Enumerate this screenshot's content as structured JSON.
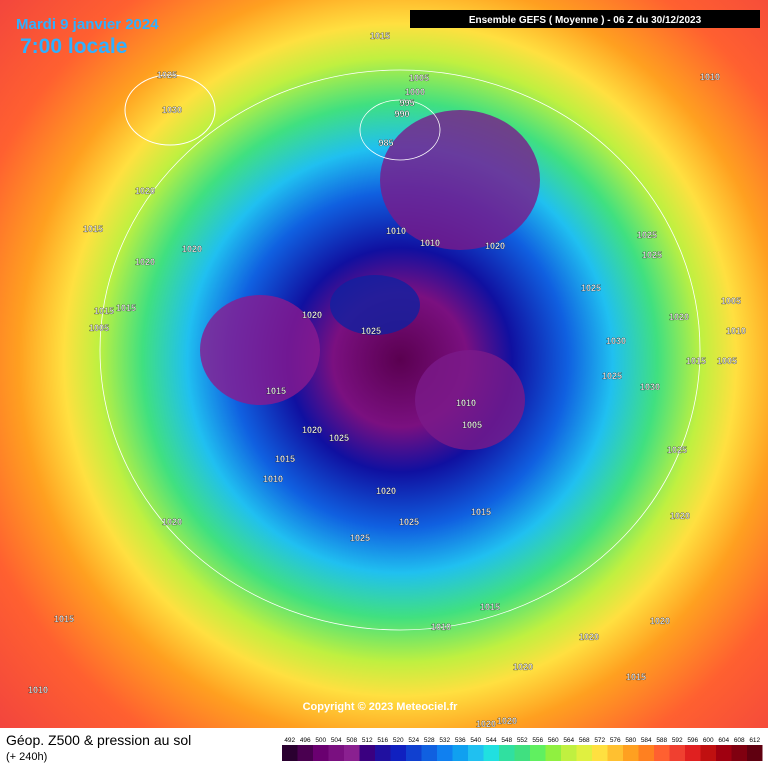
{
  "header": {
    "date": "Mardi 9 janvier 2024",
    "local_time": "7:00 locale",
    "model": "Ensemble GEFS  ( Moyenne )  -  06 Z du 30/12/2023"
  },
  "map": {
    "copyright": "Copyright © 2023 Meteociel.fr",
    "isobar_labels": [
      1015,
      1025,
      1030,
      1005,
      1000,
      995,
      990,
      985,
      1010,
      1020,
      1015,
      1020,
      1020,
      1010,
      1010,
      1020,
      1025,
      1025,
      1025,
      1005,
      1020,
      1025,
      1015,
      1015,
      1005,
      1020,
      1010,
      1030,
      1015,
      1005,
      1025,
      1030,
      1015,
      1010,
      1005,
      1020,
      1025,
      1015,
      1010,
      1025,
      1020,
      1015,
      1020,
      1025,
      1020,
      1025,
      1015,
      1010,
      1015,
      1020,
      1020,
      1020,
      1015,
      1010,
      1020,
      1020
    ]
  },
  "footer": {
    "title": "Géop. Z500 & pression au sol",
    "lead": "(+ 240h)",
    "scale": [
      492,
      496,
      500,
      504,
      508,
      512,
      516,
      520,
      524,
      528,
      532,
      536,
      540,
      544,
      548,
      552,
      556,
      560,
      564,
      568,
      572,
      576,
      580,
      584,
      588,
      592,
      596,
      600,
      604,
      608,
      612
    ]
  }
}
